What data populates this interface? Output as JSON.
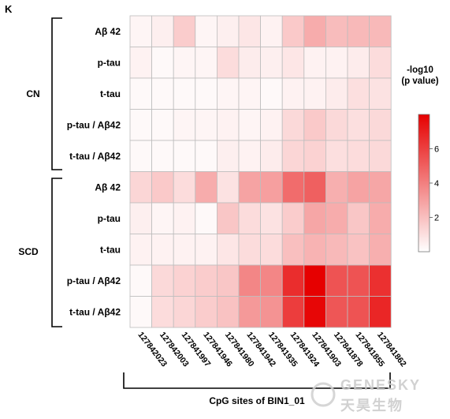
{
  "panel_label": "K",
  "chart_data": {
    "type": "heatmap",
    "xlabel": "CpG sites of BIN1_01",
    "columns": [
      "127842023",
      "127842003",
      "127841997",
      "127841946",
      "127841980",
      "127841942",
      "127841935",
      "127841924",
      "127841903",
      "127841878",
      "127841855",
      "127841862"
    ],
    "groups": [
      {
        "name": "CN",
        "rows": [
          "Aβ 42",
          "p-tau",
          "t-tau",
          "p-tau / Aβ42",
          "t-tau / Aβ42"
        ]
      },
      {
        "name": "SCD",
        "rows": [
          "Aβ 42",
          "p-tau",
          "t-tau",
          "p-tau / Aβ42",
          "t-tau / Aβ42"
        ]
      }
    ],
    "values": [
      [
        0.3,
        0.5,
        1.6,
        0.3,
        0.5,
        0.8,
        0.4,
        1.7,
        2.6,
        2.1,
        2.2,
        2.2
      ],
      [
        0.4,
        0.2,
        0.3,
        0.3,
        1.1,
        0.6,
        0.5,
        0.8,
        0.4,
        0.4,
        0.6,
        1.1
      ],
      [
        0.2,
        0.2,
        0.2,
        0.2,
        0.3,
        0.3,
        0.2,
        0.4,
        0.4,
        0.6,
        1.0,
        0.9
      ],
      [
        0.2,
        0.2,
        0.3,
        0.3,
        0.4,
        0.3,
        0.4,
        1.2,
        1.7,
        1.2,
        1.0,
        1.2
      ],
      [
        0.2,
        0.2,
        0.2,
        0.2,
        0.5,
        0.4,
        0.6,
        1.3,
        1.4,
        1.0,
        1.1,
        1.2
      ],
      [
        1.3,
        1.7,
        1.1,
        2.6,
        0.9,
        2.9,
        3.0,
        4.6,
        5.0,
        2.5,
        2.9,
        2.8
      ],
      [
        0.5,
        0.3,
        0.4,
        0.2,
        1.8,
        1.1,
        0.9,
        1.6,
        2.8,
        2.6,
        1.8,
        2.6
      ],
      [
        0.4,
        0.4,
        0.4,
        0.4,
        0.8,
        1.1,
        1.1,
        2.0,
        2.4,
        2.2,
        1.9,
        2.5
      ],
      [
        0.2,
        1.2,
        1.4,
        1.6,
        1.8,
        3.8,
        3.8,
        6.6,
        8.0,
        5.4,
        5.4,
        6.5
      ],
      [
        0.2,
        1.1,
        1.3,
        1.6,
        1.9,
        3.2,
        3.4,
        6.1,
        7.8,
        5.3,
        5.4,
        6.8
      ]
    ],
    "legend": {
      "title_lines": [
        "-log10",
        "(p value)"
      ],
      "ticks": [
        "2",
        "4",
        "6"
      ],
      "range": [
        0,
        8
      ]
    },
    "colors": {
      "low": "#ffffff",
      "high": "#e60000",
      "grid": "#bdbdbd",
      "bracket": "#000000"
    }
  },
  "watermark": {
    "line1": "GENESKY",
    "line2": "天昊生物"
  }
}
